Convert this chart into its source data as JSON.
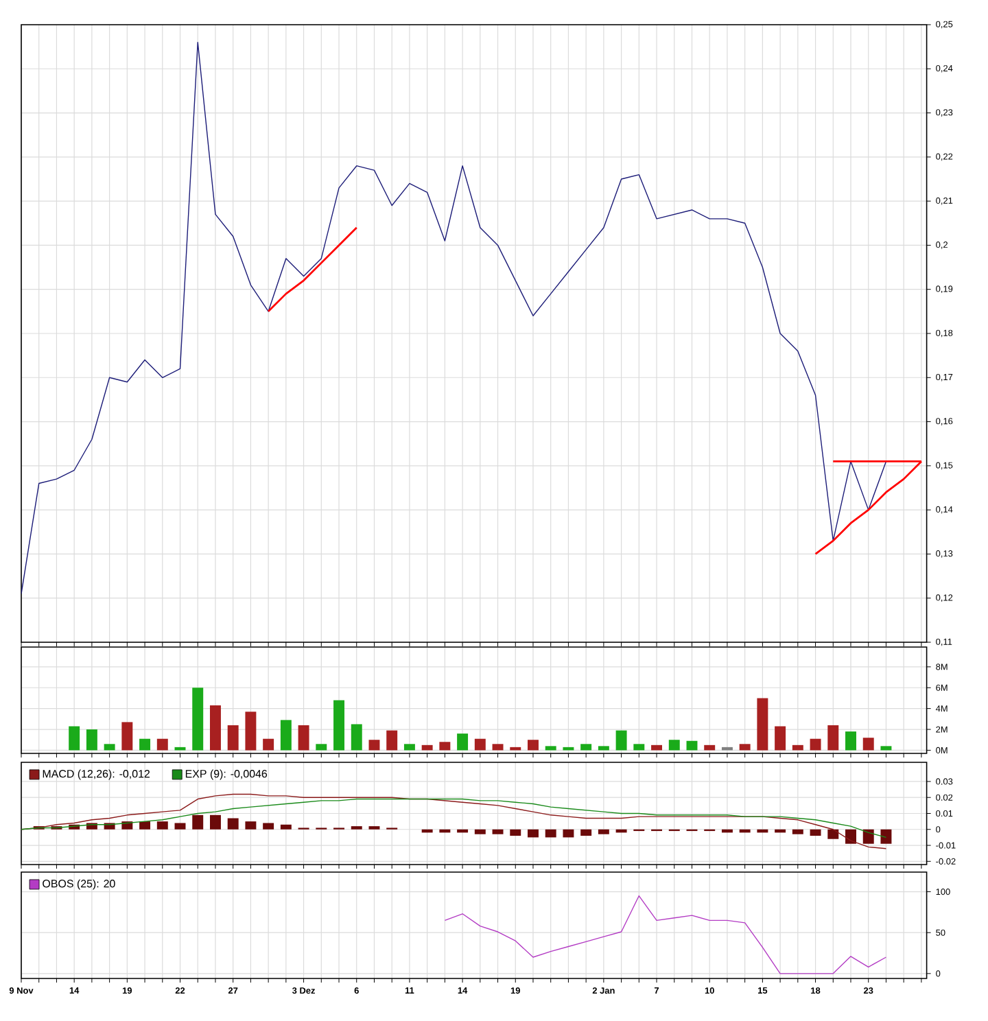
{
  "chart_data": [
    {
      "type": "line",
      "categories": [
        null,
        null,
        null,
        null,
        null,
        null,
        null,
        null,
        null,
        null,
        null,
        null,
        null,
        null,
        null,
        null,
        null,
        null,
        null,
        null,
        null,
        null,
        null,
        null,
        null,
        null,
        null,
        null,
        null,
        null,
        null,
        null,
        null,
        null,
        null,
        null,
        null,
        null,
        null,
        null,
        null,
        null,
        null,
        null,
        null,
        null,
        null,
        null,
        null,
        null,
        null,
        null
      ],
      "series": [
        {
          "color": "#1c1c78",
          "values": [
            0.121,
            0.146,
            0.147,
            0.149,
            0.156,
            0.17,
            0.169,
            0.174,
            0.17,
            0.172,
            0.246,
            0.207,
            0.202,
            0.191,
            0.185,
            0.197,
            0.193,
            0.197,
            0.213,
            0.218,
            0.217,
            0.209,
            0.214,
            0.212,
            0.201,
            0.218,
            0.204,
            0.2,
            0.192,
            0.184,
            0.189,
            0.194,
            0.199,
            0.204,
            0.215,
            0.216,
            0.206,
            0.207,
            0.208,
            0.206,
            0.206,
            0.205,
            0.195,
            0.18,
            0.176,
            0.166,
            0.133,
            0.151,
            0.14,
            0.151,
            null,
            null
          ]
        },
        {
          "color": "#ff0000",
          "values": [
            null,
            null,
            null,
            null,
            null,
            null,
            null,
            null,
            null,
            null,
            null,
            null,
            null,
            null,
            0.185,
            0.189,
            0.192,
            0.196,
            0.2,
            0.204,
            null,
            null,
            null,
            null,
            null,
            null,
            null,
            null,
            null,
            null,
            null,
            null,
            null,
            null,
            null,
            null,
            null,
            null,
            null,
            null,
            null,
            null,
            null,
            null,
            null,
            null,
            null,
            null,
            null,
            null,
            null,
            null
          ]
        },
        {
          "color": "#ff0000",
          "values": [
            null,
            null,
            null,
            null,
            null,
            null,
            null,
            null,
            null,
            null,
            null,
            null,
            null,
            null,
            null,
            null,
            null,
            null,
            null,
            null,
            null,
            null,
            null,
            null,
            null,
            null,
            null,
            null,
            null,
            null,
            null,
            null,
            null,
            null,
            null,
            null,
            null,
            null,
            null,
            null,
            null,
            null,
            null,
            null,
            null,
            null,
            0.151,
            0.151,
            0.151,
            0.151,
            0.151,
            0.151
          ]
        },
        {
          "color": "#ff0000",
          "values": [
            null,
            null,
            null,
            null,
            null,
            null,
            null,
            null,
            null,
            null,
            null,
            null,
            null,
            null,
            null,
            null,
            null,
            null,
            null,
            null,
            null,
            null,
            null,
            null,
            null,
            null,
            null,
            null,
            null,
            null,
            null,
            null,
            null,
            null,
            null,
            null,
            null,
            null,
            null,
            null,
            null,
            null,
            null,
            null,
            null,
            0.13,
            0.133,
            0.137,
            0.14,
            0.144,
            0.147,
            0.151
          ]
        }
      ],
      "ylim": [
        0.11,
        0.25
      ],
      "yticks": [
        {
          "value": 0.11,
          "label": "0,11"
        },
        {
          "value": 0.12,
          "label": "0,12"
        },
        {
          "value": 0.13,
          "label": "0,13"
        },
        {
          "value": 0.14,
          "label": "0,14"
        },
        {
          "value": 0.15,
          "label": "0,15"
        },
        {
          "value": 0.16,
          "label": "0,16"
        },
        {
          "value": 0.17,
          "label": "0,17"
        },
        {
          "value": 0.18,
          "label": "0,18"
        },
        {
          "value": 0.19,
          "label": "0,19"
        },
        {
          "value": 0.2,
          "label": "0,2"
        },
        {
          "value": 0.21,
          "label": "0,21"
        },
        {
          "value": 0.22,
          "label": "0,22"
        },
        {
          "value": 0.23,
          "label": "0,23"
        },
        {
          "value": 0.24,
          "label": "0,24"
        },
        {
          "value": 0.25,
          "label": "0,25"
        }
      ],
      "grid": true,
      "tick_labels": "y"
    },
    {
      "type": "bar",
      "categories": [
        null,
        null,
        null,
        null,
        null,
        null,
        null,
        null,
        null,
        null,
        null,
        null,
        null,
        null,
        null,
        null,
        null,
        null,
        null,
        null,
        null,
        null,
        null,
        null,
        null,
        null,
        null,
        null,
        null,
        null,
        null,
        null,
        null,
        null,
        null,
        null,
        null,
        null,
        null,
        null,
        null,
        null,
        null,
        null,
        null,
        null,
        null,
        null,
        null,
        null,
        null,
        null
      ],
      "values": [
        null,
        null,
        null,
        2.3,
        2.0,
        0.6,
        2.7,
        1.1,
        1.1,
        0.3,
        6.0,
        4.3,
        2.4,
        3.7,
        1.1,
        2.9,
        2.4,
        0.6,
        4.8,
        2.5,
        1.0,
        1.9,
        0.6,
        0.5,
        0.8,
        1.6,
        1.1,
        0.6,
        0.3,
        1.0,
        0.4,
        0.3,
        0.6,
        0.4,
        1.9,
        0.6,
        0.5,
        1.0,
        0.9,
        0.5,
        0.3,
        0.6,
        5.0,
        2.3,
        0.5,
        1.1,
        2.4,
        1.8,
        1.2,
        0.4,
        null,
        null
      ],
      "colors": [
        null,
        null,
        null,
        "#1aab1a",
        "#1aab1a",
        "#1aab1a",
        "#a82020",
        "#1aab1a",
        "#a82020",
        "#1aab1a",
        "#1aab1a",
        "#a82020",
        "#a82020",
        "#a82020",
        "#a82020",
        "#1aab1a",
        "#a82020",
        "#1aab1a",
        "#1aab1a",
        "#1aab1a",
        "#a82020",
        "#a82020",
        "#1aab1a",
        "#a82020",
        "#a82020",
        "#1aab1a",
        "#a82020",
        "#a82020",
        "#a82020",
        "#a82020",
        "#1aab1a",
        "#1aab1a",
        "#1aab1a",
        "#1aab1a",
        "#1aab1a",
        "#1aab1a",
        "#a82020",
        "#1aab1a",
        "#1aab1a",
        "#a82020",
        "#808080",
        "#a82020",
        "#a82020",
        "#a82020",
        "#a82020",
        "#a82020",
        "#a82020",
        "#1aab1a",
        "#a82020",
        "#1aab1a",
        null,
        null
      ],
      "ylim": [
        -0.3,
        9.9
      ],
      "yticks": [
        {
          "value": 0,
          "label": "0M"
        },
        {
          "value": 2,
          "label": "2M"
        },
        {
          "value": 4,
          "label": "4M"
        },
        {
          "value": 6,
          "label": "6M"
        },
        {
          "value": 8,
          "label": "8M"
        }
      ],
      "grid": true,
      "tick_labels": "y"
    },
    {
      "type": "line",
      "categories": [
        null,
        null,
        null,
        null,
        null,
        null,
        null,
        null,
        null,
        null,
        null,
        null,
        null,
        null,
        null,
        null,
        null,
        null,
        null,
        null,
        null,
        null,
        null,
        null,
        null,
        null,
        null,
        null,
        null,
        null,
        null,
        null,
        null,
        null,
        null,
        null,
        null,
        null,
        null,
        null,
        null,
        null,
        null,
        null,
        null,
        null,
        null,
        null,
        null,
        null,
        null,
        null
      ],
      "series": [
        {
          "type": "bar",
          "color": "#6b0a0a",
          "values": [
            null,
            0.002,
            0.002,
            0.003,
            0.004,
            0.004,
            0.005,
            0.005,
            0.005,
            0.004,
            0.009,
            0.009,
            0.007,
            0.005,
            0.004,
            0.003,
            0.001,
            0.001,
            0.001,
            0.002,
            0.002,
            0.001,
            0,
            -0.002,
            -0.002,
            -0.002,
            -0.003,
            -0.003,
            -0.004,
            -0.005,
            -0.005,
            -0.005,
            -0.004,
            -0.003,
            -0.002,
            -0.001,
            -0.001,
            -0.001,
            -0.001,
            -0.001,
            -0.002,
            -0.002,
            -0.002,
            -0.002,
            -0.003,
            -0.004,
            -0.006,
            -0.009,
            -0.009,
            -0.009,
            null,
            null
          ]
        },
        {
          "name": "MACD (12,26): -0,012",
          "color": "#8b1a1a",
          "values": [
            0,
            0.001,
            0.003,
            0.004,
            0.006,
            0.007,
            0.009,
            0.01,
            0.011,
            0.012,
            0.019,
            0.021,
            0.022,
            0.022,
            0.021,
            0.021,
            0.02,
            0.02,
            0.02,
            0.02,
            0.02,
            0.02,
            0.019,
            0.019,
            0.018,
            0.017,
            0.016,
            0.015,
            0.013,
            0.011,
            0.009,
            0.008,
            0.007,
            0.007,
            0.007,
            0.008,
            0.008,
            0.008,
            0.008,
            0.008,
            0.008,
            0.008,
            0.008,
            0.007,
            0.006,
            0.003,
            0,
            -0.007,
            -0.011,
            -0.012,
            null,
            null
          ]
        },
        {
          "name": "EXP (9): -0,0046",
          "color": "#1a8a1a",
          "values": [
            0,
            0.001,
            0.001,
            0.002,
            0.003,
            0.003,
            0.004,
            0.005,
            0.006,
            0.008,
            0.01,
            0.011,
            0.013,
            0.014,
            0.015,
            0.016,
            0.017,
            0.018,
            0.018,
            0.019,
            0.019,
            0.019,
            0.019,
            0.019,
            0.019,
            0.019,
            0.018,
            0.018,
            0.017,
            0.016,
            0.014,
            0.013,
            0.012,
            0.011,
            0.01,
            0.01,
            0.009,
            0.009,
            0.009,
            0.009,
            0.009,
            0.008,
            0.008,
            0.008,
            0.007,
            0.006,
            0.004,
            0.002,
            -0.002,
            -0.005,
            null,
            null
          ]
        }
      ],
      "ylim": [
        -0.022,
        0.042
      ],
      "yticks": [
        -0.02,
        -0.01,
        0,
        0.01,
        0.02,
        0.03
      ],
      "grid": true,
      "legend": "top left",
      "tick_labels": "y"
    },
    {
      "type": "line",
      "categories": [
        "9 Nov",
        null,
        null,
        "14",
        null,
        null,
        "19",
        null,
        null,
        "22",
        null,
        null,
        "27",
        null,
        null,
        null,
        "3 Dez",
        null,
        null,
        "6",
        null,
        null,
        "11",
        null,
        null,
        "14",
        null,
        null,
        "19",
        null,
        null,
        null,
        null,
        "2 Jan",
        null,
        null,
        "7",
        null,
        null,
        "10",
        null,
        null,
        "15",
        null,
        null,
        "18",
        null,
        null,
        "23",
        null,
        null,
        null
      ],
      "series": [
        {
          "name": "OBOS (25): 20",
          "color": "#b33cc4",
          "values": [
            null,
            null,
            null,
            null,
            null,
            null,
            null,
            null,
            null,
            null,
            null,
            null,
            null,
            null,
            null,
            null,
            null,
            null,
            null,
            null,
            null,
            null,
            null,
            null,
            65,
            73,
            58,
            51,
            40,
            20,
            27,
            33,
            39,
            45,
            51,
            95,
            65,
            68,
            71,
            65,
            65,
            62,
            32,
            0,
            0,
            0,
            0,
            21,
            8,
            20,
            null,
            null
          ]
        }
      ],
      "ylim": [
        -6,
        124
      ],
      "yticks": [
        0,
        50,
        100
      ],
      "grid": true,
      "legend": "top left"
    }
  ]
}
